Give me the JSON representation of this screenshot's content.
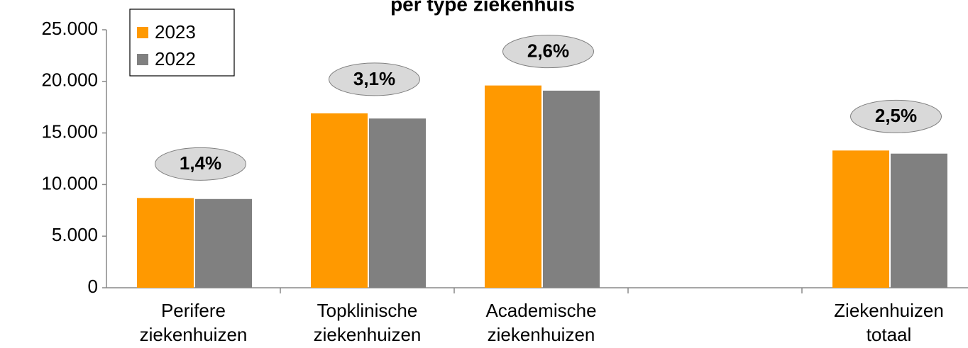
{
  "chart_data": {
    "type": "bar",
    "title": "per type ziekenhuis",
    "categories": [
      "Perifere ziekenhuizen",
      "Topklinische ziekenhuizen",
      "Academische ziekenhuizen",
      null,
      "Ziekenhuizen totaal"
    ],
    "series": [
      {
        "name": "2023",
        "color": "#ff9900",
        "values": [
          8700,
          16900,
          19600,
          null,
          13300
        ]
      },
      {
        "name": "2022",
        "color": "#808080",
        "values": [
          8600,
          16400,
          19100,
          null,
          13000
        ]
      }
    ],
    "annotations": [
      "1,4%",
      "3,1%",
      "2,6%",
      null,
      "2,5%"
    ],
    "ylim": [
      0,
      25000
    ],
    "yticks": [
      0,
      {
        "value": 5000,
        "label": "5.000"
      },
      {
        "value": 10000,
        "label": "10.000"
      },
      {
        "value": 15000,
        "label": "15.000"
      },
      {
        "value": 20000,
        "label": "20.000"
      },
      {
        "value": 25000,
        "label": "25.000"
      }
    ],
    "legend": "top-left"
  }
}
